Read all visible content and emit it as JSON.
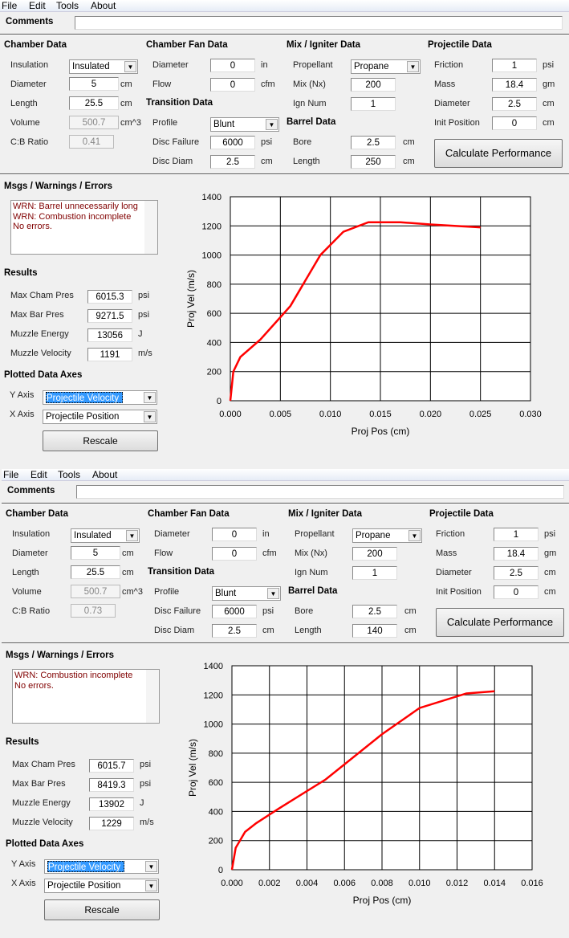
{
  "menu": [
    "File",
    "Edit",
    "Tools",
    "About"
  ],
  "labels": {
    "comments": "Comments",
    "chamber_data": "Chamber Data",
    "chamber_fan_data": "Chamber Fan Data",
    "transition_data": "Transition Data",
    "mix_igniter_data": "Mix / Igniter Data",
    "barrel_data": "Barrel Data",
    "projectile_data": "Projectile Data",
    "msgs": "Msgs / Warnings / Errors",
    "results": "Results",
    "plotted_axes": "Plotted Data Axes",
    "y_axis": "Y Axis",
    "x_axis": "X Axis",
    "calculate": "Calculate Performance",
    "rescale": "Rescale",
    "insulation": "Insulation",
    "diameter": "Diameter",
    "length": "Length",
    "volume": "Volume",
    "cb_ratio": "C:B Ratio",
    "flow": "Flow",
    "profile": "Profile",
    "disc_failure": "Disc Failure",
    "disc_diam": "Disc Diam",
    "propellant": "Propellant",
    "mix": "Mix (Nx)",
    "ign_num": "Ign Num",
    "bore": "Bore",
    "friction": "Friction",
    "mass": "Mass",
    "init_position": "Init Position",
    "max_cham_pres": "Max Cham Pres",
    "max_bar_pres": "Max Bar Pres",
    "muzzle_energy": "Muzzle Energy",
    "muzzle_velocity": "Muzzle Velocity"
  },
  "units": {
    "cm": "cm",
    "cm3": "cm^3",
    "in": "in",
    "cfm": "cfm",
    "psi": "psi",
    "gm": "gm",
    "J": "J",
    "ms": "m/s"
  },
  "windows": [
    {
      "comments": "",
      "chamber": {
        "insulation": "Insulated",
        "diameter": "5",
        "length": "25.5",
        "volume": "500.7",
        "cb_ratio": "0.41"
      },
      "fan": {
        "diameter": "0",
        "flow": "0"
      },
      "transition": {
        "profile": "Blunt",
        "disc_failure": "6000",
        "disc_diam": "2.5"
      },
      "mix": {
        "propellant": "Propane",
        "mix": "200",
        "ign_num": "1"
      },
      "barrel": {
        "bore": "2.5",
        "length": "250"
      },
      "projectile": {
        "friction": "1",
        "mass": "18.4",
        "diameter": "2.5",
        "init_position": "0"
      },
      "messages": [
        "WRN: Barrel unnecessarily long",
        "WRN: Combustion incomplete",
        "No errors."
      ],
      "results": {
        "max_cham_pres": "6015.3",
        "max_bar_pres": "9271.5",
        "muzzle_energy": "13056",
        "muzzle_velocity": "1191"
      },
      "y_axis": "Projectile Velocity",
      "x_axis": "Projectile Position",
      "chart": {
        "type": "line",
        "xlabel": "Proj Pos (cm)",
        "ylabel": "Proj Vel (m/s)",
        "xlim": [
          0,
          0.03
        ],
        "ylim": [
          0,
          1400
        ],
        "xticks": [
          "0.000",
          "0.005",
          "0.010",
          "0.015",
          "0.020",
          "0.025",
          "0.030"
        ],
        "yticks": [
          "0",
          "200",
          "400",
          "600",
          "800",
          "1000",
          "1200",
          "1400"
        ],
        "color": "#ff0000",
        "x": [
          0,
          0.0003,
          0.001,
          0.003,
          0.006,
          0.009,
          0.0113,
          0.0138,
          0.017,
          0.02,
          0.025
        ],
        "y": [
          0,
          200,
          300,
          420,
          650,
          1000,
          1160,
          1225,
          1225,
          1210,
          1190
        ]
      }
    },
    {
      "comments": "",
      "chamber": {
        "insulation": "Insulated",
        "diameter": "5",
        "length": "25.5",
        "volume": "500.7",
        "cb_ratio": "0.73"
      },
      "fan": {
        "diameter": "0",
        "flow": "0"
      },
      "transition": {
        "profile": "Blunt",
        "disc_failure": "6000",
        "disc_diam": "2.5"
      },
      "mix": {
        "propellant": "Propane",
        "mix": "200",
        "ign_num": "1"
      },
      "barrel": {
        "bore": "2.5",
        "length": "140"
      },
      "projectile": {
        "friction": "1",
        "mass": "18.4",
        "diameter": "2.5",
        "init_position": "0"
      },
      "messages": [
        "WRN: Combustion incomplete",
        "No errors."
      ],
      "results": {
        "max_cham_pres": "6015.7",
        "max_bar_pres": "8419.3",
        "muzzle_energy": "13902",
        "muzzle_velocity": "1229"
      },
      "y_axis": "Projectile Velocity",
      "x_axis": "Projectile Position",
      "chart": {
        "type": "line",
        "xlabel": "Proj Pos (cm)",
        "ylabel": "Proj Vel (m/s)",
        "xlim": [
          0,
          0.016
        ],
        "ylim": [
          0,
          1400
        ],
        "xticks": [
          "0.000",
          "0.002",
          "0.004",
          "0.006",
          "0.008",
          "0.010",
          "0.012",
          "0.014",
          "0.016"
        ],
        "yticks": [
          "0",
          "200",
          "400",
          "600",
          "800",
          "1000",
          "1200",
          "1400"
        ],
        "color": "#ff0000",
        "x": [
          0,
          0.0002,
          0.0007,
          0.0013,
          0.0025,
          0.005,
          0.008,
          0.01,
          0.0125,
          0.014
        ],
        "y": [
          0,
          150,
          260,
          320,
          420,
          620,
          930,
          1110,
          1210,
          1225
        ]
      }
    }
  ]
}
